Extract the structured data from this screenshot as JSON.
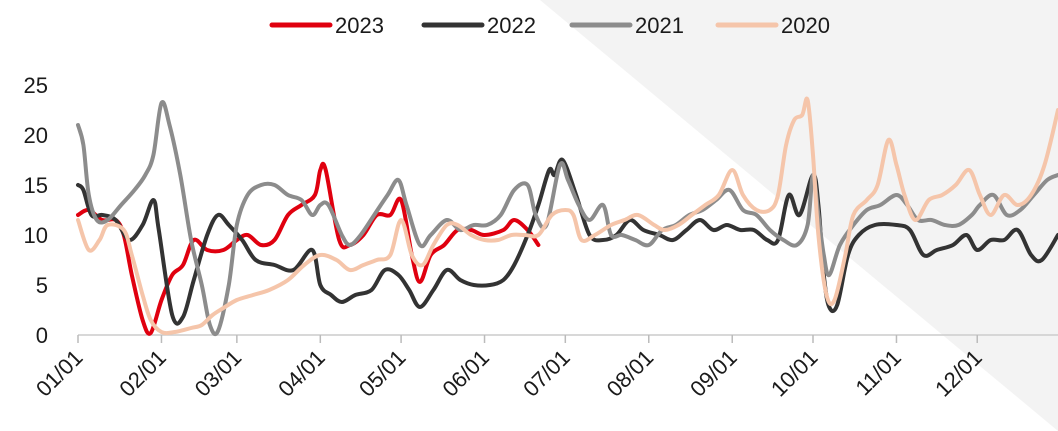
{
  "chart_data": {
    "type": "line",
    "title": "",
    "xlabel": "",
    "ylabel": "",
    "ylim": [
      0,
      25
    ],
    "yticks": [
      0,
      5,
      10,
      15,
      20,
      25
    ],
    "x_domain": [
      "01/01",
      "12/31"
    ],
    "xticks": [
      "01/01",
      "02/01",
      "03/01",
      "04/01",
      "05/01",
      "06/01",
      "07/01",
      "08/01",
      "09/01",
      "10/01",
      "11/01",
      "12/01"
    ],
    "grid": false,
    "legend": {
      "position": "top",
      "entries": [
        "2023",
        "2022",
        "2021",
        "2020"
      ]
    },
    "series": [
      {
        "name": "2023",
        "color": "#e0000f",
        "points": [
          [
            "01/01",
            12
          ],
          [
            "01/05",
            12.5
          ],
          [
            "01/10",
            11.5
          ],
          [
            "01/15",
            11.5
          ],
          [
            "01/18",
            10
          ],
          [
            "01/21",
            6
          ],
          [
            "01/25",
            1.5
          ],
          [
            "01/28",
            0.2
          ],
          [
            "02/01",
            3.5
          ],
          [
            "02/05",
            6
          ],
          [
            "02/09",
            7
          ],
          [
            "02/13",
            9.5
          ],
          [
            "02/18",
            8.5
          ],
          [
            "02/24",
            8.5
          ],
          [
            "03/01",
            9.5
          ],
          [
            "03/05",
            10
          ],
          [
            "03/10",
            9
          ],
          [
            "03/15",
            9.5
          ],
          [
            "03/20",
            12
          ],
          [
            "03/25",
            13
          ],
          [
            "03/30",
            14
          ],
          [
            "04/01",
            16.5
          ],
          [
            "04/03",
            16.5
          ],
          [
            "04/08",
            9.5
          ],
          [
            "04/12",
            9
          ],
          [
            "04/17",
            10
          ],
          [
            "04/22",
            12
          ],
          [
            "04/27",
            12
          ],
          [
            "05/01",
            13.5
          ],
          [
            "05/05",
            8
          ],
          [
            "05/08",
            5.3
          ],
          [
            "05/12",
            8
          ],
          [
            "05/17",
            9
          ],
          [
            "05/22",
            10.5
          ],
          [
            "05/27",
            10.5
          ],
          [
            "06/01",
            10
          ],
          [
            "06/08",
            10.5
          ],
          [
            "06/12",
            11.5
          ],
          [
            "06/17",
            10.5
          ],
          [
            "06/21",
            9
          ]
        ]
      },
      {
        "name": "2022",
        "color": "#333333",
        "points": [
          [
            "01/01",
            15
          ],
          [
            "01/03",
            14.5
          ],
          [
            "01/06",
            12
          ],
          [
            "01/10",
            12
          ],
          [
            "01/15",
            11.5
          ],
          [
            "01/20",
            9.5
          ],
          [
            "01/25",
            11
          ],
          [
            "01/29",
            13.5
          ],
          [
            "01/31",
            10.5
          ],
          [
            "02/05",
            2
          ],
          [
            "02/09",
            1.8
          ],
          [
            "02/13",
            5.5
          ],
          [
            "02/18",
            10
          ],
          [
            "02/22",
            12
          ],
          [
            "02/26",
            11
          ],
          [
            "03/03",
            9.5
          ],
          [
            "03/08",
            7.5
          ],
          [
            "03/15",
            7
          ],
          [
            "03/22",
            6.5
          ],
          [
            "03/29",
            8.5
          ],
          [
            "04/01",
            5
          ],
          [
            "04/05",
            4
          ],
          [
            "04/09",
            3.3
          ],
          [
            "04/14",
            4
          ],
          [
            "04/20",
            4.5
          ],
          [
            "04/25",
            6.5
          ],
          [
            "04/30",
            6
          ],
          [
            "05/04",
            4.5
          ],
          [
            "05/08",
            2.8
          ],
          [
            "05/13",
            4.5
          ],
          [
            "05/18",
            6.5
          ],
          [
            "05/23",
            5.5
          ],
          [
            "05/28",
            5
          ],
          [
            "06/03",
            5
          ],
          [
            "06/08",
            5.5
          ],
          [
            "06/12",
            7
          ],
          [
            "06/17",
            10
          ],
          [
            "06/21",
            13
          ],
          [
            "06/25",
            16.5
          ],
          [
            "06/27",
            16
          ],
          [
            "06/30",
            17.5
          ],
          [
            "07/05",
            14
          ],
          [
            "07/10",
            10
          ],
          [
            "07/15",
            9.5
          ],
          [
            "07/20",
            10
          ],
          [
            "07/25",
            11.5
          ],
          [
            "07/30",
            10.5
          ],
          [
            "08/05",
            10
          ],
          [
            "08/10",
            9.5
          ],
          [
            "08/15",
            10.5
          ],
          [
            "08/20",
            11.5
          ],
          [
            "08/25",
            10.5
          ],
          [
            "08/30",
            11
          ],
          [
            "09/04",
            10.5
          ],
          [
            "09/09",
            10.5
          ],
          [
            "09/14",
            9.5
          ],
          [
            "09/18",
            9.5
          ],
          [
            "09/22",
            14
          ],
          [
            "09/26",
            12
          ],
          [
            "10/01",
            16
          ],
          [
            "10/03",
            13
          ],
          [
            "10/05",
            6
          ],
          [
            "10/07",
            2.8
          ],
          [
            "10/10",
            3
          ],
          [
            "10/14",
            8
          ],
          [
            "10/18",
            10
          ],
          [
            "10/24",
            11
          ],
          [
            "11/01",
            11
          ],
          [
            "11/06",
            10.5
          ],
          [
            "11/11",
            8
          ],
          [
            "11/16",
            8.5
          ],
          [
            "11/22",
            9
          ],
          [
            "11/27",
            10
          ],
          [
            "12/01",
            8.5
          ],
          [
            "12/06",
            9.5
          ],
          [
            "12/11",
            9.5
          ],
          [
            "12/16",
            10.5
          ],
          [
            "12/21",
            8
          ],
          [
            "12/25",
            7.5
          ],
          [
            "12/31",
            10
          ]
        ]
      },
      {
        "name": "2021",
        "color": "#8c8c8c",
        "points": [
          [
            "01/01",
            21
          ],
          [
            "01/03",
            19
          ],
          [
            "01/05",
            14
          ],
          [
            "01/08",
            11.5
          ],
          [
            "01/12",
            11.5
          ],
          [
            "01/17",
            13
          ],
          [
            "01/22",
            14.5
          ],
          [
            "01/26",
            16
          ],
          [
            "01/29",
            18
          ],
          [
            "02/01",
            23.2
          ],
          [
            "02/04",
            21
          ],
          [
            "02/08",
            16
          ],
          [
            "02/12",
            9.5
          ],
          [
            "02/16",
            5
          ],
          [
            "02/19",
            1
          ],
          [
            "02/22",
            0.4
          ],
          [
            "02/26",
            5
          ],
          [
            "03/01",
            11
          ],
          [
            "03/05",
            14
          ],
          [
            "03/10",
            15
          ],
          [
            "03/15",
            15
          ],
          [
            "03/20",
            14
          ],
          [
            "03/25",
            13.5
          ],
          [
            "03/29",
            12
          ],
          [
            "04/01",
            13
          ],
          [
            "04/04",
            13
          ],
          [
            "04/09",
            10
          ],
          [
            "04/12",
            9
          ],
          [
            "04/16",
            10
          ],
          [
            "04/21",
            12
          ],
          [
            "04/26",
            14
          ],
          [
            "04/30",
            15.5
          ],
          [
            "05/03",
            13
          ],
          [
            "05/08",
            9
          ],
          [
            "05/12",
            10
          ],
          [
            "05/18",
            11.5
          ],
          [
            "05/23",
            10.5
          ],
          [
            "05/28",
            11
          ],
          [
            "06/02",
            11
          ],
          [
            "06/07",
            12
          ],
          [
            "06/12",
            14.5
          ],
          [
            "06/17",
            15
          ],
          [
            "06/20",
            12
          ],
          [
            "06/24",
            11
          ],
          [
            "06/29",
            17
          ],
          [
            "07/02",
            15.5
          ],
          [
            "07/06",
            13
          ],
          [
            "07/10",
            11.5
          ],
          [
            "07/15",
            13
          ],
          [
            "07/18",
            10
          ],
          [
            "07/22",
            10
          ],
          [
            "07/27",
            9.5
          ],
          [
            "08/01",
            9
          ],
          [
            "08/06",
            10.5
          ],
          [
            "08/11",
            11
          ],
          [
            "08/16",
            12
          ],
          [
            "08/21",
            12.5
          ],
          [
            "08/26",
            13.5
          ],
          [
            "08/31",
            14.5
          ],
          [
            "09/05",
            12.5
          ],
          [
            "09/10",
            12
          ],
          [
            "09/15",
            10.5
          ],
          [
            "09/20",
            9.5
          ],
          [
            "09/25",
            9
          ],
          [
            "09/29",
            11
          ],
          [
            "10/01",
            16
          ],
          [
            "10/03",
            12
          ],
          [
            "10/05",
            8
          ],
          [
            "10/07",
            6
          ],
          [
            "10/11",
            9
          ],
          [
            "10/16",
            11
          ],
          [
            "10/21",
            12.5
          ],
          [
            "10/26",
            13
          ],
          [
            "11/01",
            14
          ],
          [
            "11/05",
            13
          ],
          [
            "11/09",
            11.5
          ],
          [
            "11/14",
            11.5
          ],
          [
            "11/19",
            11
          ],
          [
            "11/24",
            11
          ],
          [
            "11/29",
            12
          ],
          [
            "12/02",
            13
          ],
          [
            "12/07",
            14
          ],
          [
            "12/12",
            12
          ],
          [
            "12/17",
            12.5
          ],
          [
            "12/22",
            14
          ],
          [
            "12/27",
            15.5
          ],
          [
            "12/31",
            16
          ]
        ]
      },
      {
        "name": "2020",
        "color": "#f5c5aa",
        "points": [
          [
            "01/01",
            11.5
          ],
          [
            "01/05",
            8.5
          ],
          [
            "01/09",
            9.5
          ],
          [
            "01/12",
            11
          ],
          [
            "01/18",
            10.5
          ],
          [
            "01/21",
            8
          ],
          [
            "01/25",
            4
          ],
          [
            "01/28",
            1.5
          ],
          [
            "02/01",
            0.3
          ],
          [
            "02/06",
            0.3
          ],
          [
            "02/12",
            0.7
          ],
          [
            "02/16",
            1
          ],
          [
            "02/20",
            2
          ],
          [
            "02/24",
            2.7
          ],
          [
            "03/01",
            3.5
          ],
          [
            "03/07",
            4
          ],
          [
            "03/13",
            4.5
          ],
          [
            "03/20",
            5.5
          ],
          [
            "03/26",
            7
          ],
          [
            "04/01",
            8
          ],
          [
            "04/07",
            7.5
          ],
          [
            "04/12",
            6.5
          ],
          [
            "04/17",
            7
          ],
          [
            "04/22",
            7.5
          ],
          [
            "04/27",
            8
          ],
          [
            "05/01",
            11.5
          ],
          [
            "05/05",
            8
          ],
          [
            "05/09",
            7
          ],
          [
            "05/13",
            9
          ],
          [
            "05/18",
            11
          ],
          [
            "05/22",
            11
          ],
          [
            "05/27",
            10
          ],
          [
            "06/01",
            9.5
          ],
          [
            "06/06",
            9.5
          ],
          [
            "06/11",
            10
          ],
          [
            "06/16",
            10
          ],
          [
            "06/21",
            10
          ],
          [
            "06/26",
            12
          ],
          [
            "07/01",
            12.5
          ],
          [
            "07/04",
            12
          ],
          [
            "07/07",
            9.5
          ],
          [
            "07/12",
            10
          ],
          [
            "07/18",
            11
          ],
          [
            "07/23",
            11.5
          ],
          [
            "07/28",
            12
          ],
          [
            "08/03",
            11
          ],
          [
            "08/07",
            10.5
          ],
          [
            "08/12",
            11
          ],
          [
            "08/17",
            12
          ],
          [
            "08/22",
            13
          ],
          [
            "08/27",
            14
          ],
          [
            "09/01",
            16.5
          ],
          [
            "09/05",
            14
          ],
          [
            "09/10",
            12.5
          ],
          [
            "09/15",
            12.5
          ],
          [
            "09/18",
            14
          ],
          [
            "09/21",
            19
          ],
          [
            "09/24",
            21.5
          ],
          [
            "09/27",
            22
          ],
          [
            "09/29",
            23.5
          ],
          [
            "10/01",
            18
          ],
          [
            "10/03",
            10
          ],
          [
            "10/06",
            4
          ],
          [
            "10/09",
            3.5
          ],
          [
            "10/13",
            8
          ],
          [
            "10/16",
            12
          ],
          [
            "10/21",
            13.5
          ],
          [
            "10/25",
            15
          ],
          [
            "10/29",
            19.5
          ],
          [
            "11/01",
            17
          ],
          [
            "11/04",
            14
          ],
          [
            "11/08",
            11.5
          ],
          [
            "11/13",
            13.5
          ],
          [
            "11/18",
            14
          ],
          [
            "11/23",
            15
          ],
          [
            "11/28",
            16.5
          ],
          [
            "12/02",
            14
          ],
          [
            "12/06",
            12
          ],
          [
            "12/11",
            14
          ],
          [
            "12/16",
            13
          ],
          [
            "12/21",
            14
          ],
          [
            "12/26",
            17
          ],
          [
            "12/31",
            22.5
          ]
        ]
      }
    ]
  }
}
